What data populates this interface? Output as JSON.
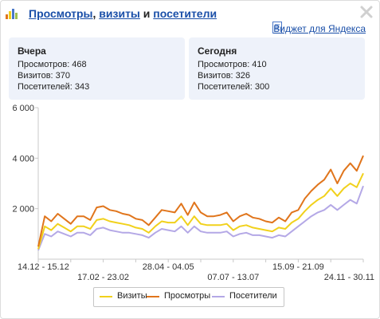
{
  "header": {
    "link_views": "Просмотры",
    "comma": ",",
    "link_visits": "визиты",
    "and": "и",
    "link_visitors": "посетители"
  },
  "widget_link": "Виджет для Яндекса",
  "yesterday": {
    "title": "Вчера",
    "views": "Просмотров: 468",
    "visits": "Визитов: 370",
    "visitors": "Посетителей: 343"
  },
  "today": {
    "title": "Сегодня",
    "views": "Просмотров: 410",
    "visits": "Визитов: 326",
    "visitors": "Посетителей: 300"
  },
  "legend": {
    "visits": "Визиты",
    "views": "Просмотры",
    "visitors": "Посетители"
  },
  "colors": {
    "visits": "#f1d11c",
    "views": "#e0751c",
    "visitors": "#b4a8e6",
    "link": "#1a4fa8"
  },
  "chart_data": {
    "type": "line",
    "ylim": [
      0,
      6000
    ],
    "yticks": [
      "6 000",
      "4 000",
      "2 000"
    ],
    "ytick_values": [
      6000,
      4000,
      2000
    ],
    "x_labels_top": [
      "14.12 - 15.12",
      "28.04 - 04.05",
      "15.09 - 21.09",
      "24.11 - 30.11"
    ],
    "x_labels_top_index": [
      0,
      20,
      40,
      50
    ],
    "x_labels_bottom": [
      "17.02 - 23.02",
      "07.07 - 13.07",
      "24.11 - 30.11"
    ],
    "x_labels_bottom_index": [
      10,
      30,
      50
    ],
    "x_count": 51,
    "series": [
      {
        "name": "Просмотры",
        "values": [
          500,
          1700,
          1500,
          1800,
          1600,
          1400,
          1700,
          1700,
          1550,
          2050,
          2100,
          1950,
          1900,
          1800,
          1750,
          1600,
          1550,
          1350,
          1650,
          1950,
          1900,
          1850,
          2200,
          1750,
          2250,
          1850,
          1700,
          1700,
          1750,
          1850,
          1500,
          1700,
          1800,
          1650,
          1600,
          1500,
          1450,
          1650,
          1500,
          1850,
          1950,
          2400,
          2700,
          2950,
          3150,
          3550,
          3000,
          3500,
          3800,
          3500,
          4100
        ]
      },
      {
        "name": "Визиты",
        "values": [
          400,
          1300,
          1150,
          1400,
          1250,
          1100,
          1300,
          1300,
          1200,
          1550,
          1600,
          1500,
          1450,
          1400,
          1350,
          1250,
          1200,
          1050,
          1300,
          1500,
          1450,
          1450,
          1700,
          1350,
          1700,
          1400,
          1350,
          1350,
          1350,
          1400,
          1150,
          1300,
          1350,
          1250,
          1200,
          1150,
          1100,
          1250,
          1200,
          1450,
          1600,
          1900,
          2150,
          2350,
          2500,
          2800,
          2500,
          2800,
          3000,
          2850,
          3400
        ]
      },
      {
        "name": "Посетители",
        "values": [
          350,
          1000,
          900,
          1100,
          1000,
          900,
          1050,
          1050,
          950,
          1200,
          1250,
          1150,
          1100,
          1050,
          1050,
          1000,
          950,
          850,
          1050,
          1200,
          1150,
          1100,
          1300,
          1050,
          1300,
          1100,
          1050,
          1050,
          1050,
          1100,
          900,
          1000,
          1050,
          950,
          950,
          900,
          850,
          950,
          900,
          1100,
          1300,
          1500,
          1700,
          1850,
          1950,
          2150,
          1950,
          2150,
          2350,
          2200,
          2900
        ]
      }
    ],
    "legend_position": "bottom",
    "grid": false
  }
}
